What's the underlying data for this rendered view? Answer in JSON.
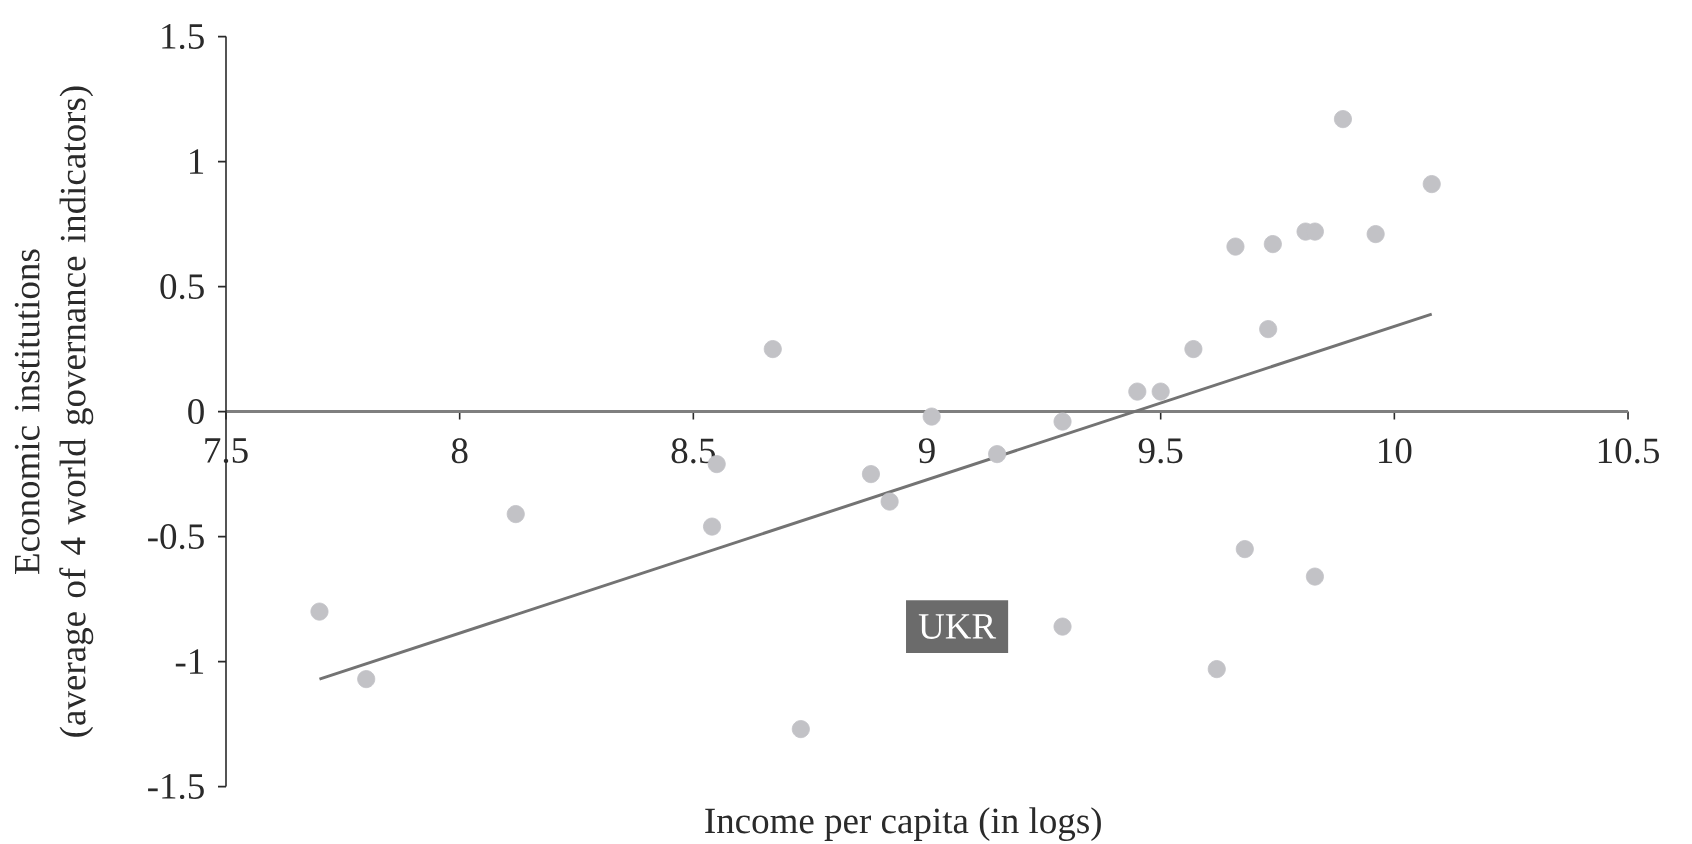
{
  "chart_data": {
    "type": "scatter",
    "xlabel": "Income per capita (in logs)",
    "ylabel": "Economic institutions\n(average of 4 world governance indicators)",
    "xlim": [
      7.5,
      10.5
    ],
    "xticks": [
      7.5,
      8,
      8.5,
      9,
      9.5,
      10,
      10.5
    ],
    "ylim": [
      -1.5,
      1.5
    ],
    "yticks": [
      -1.5,
      -1,
      -0.5,
      0,
      0.5,
      1,
      1.5
    ],
    "series": [
      {
        "color": "#c2c2c6",
        "marker": "circle",
        "x": [
          7.7,
          7.8,
          8.12,
          8.54,
          8.55,
          8.67,
          8.73,
          8.88,
          8.92,
          9.01,
          9.15,
          9.29,
          9.29,
          9.45,
          9.5,
          9.57,
          9.62,
          9.66,
          9.68,
          9.73,
          9.74,
          9.81,
          9.83,
          9.83,
          9.89,
          9.96,
          10.08
        ],
        "values": [
          -0.8,
          -1.07,
          -0.41,
          -0.46,
          -0.21,
          0.25,
          -1.27,
          -0.25,
          -0.36,
          -0.02,
          -0.17,
          -0.04,
          -0.86,
          0.08,
          0.08,
          0.25,
          -1.03,
          0.66,
          -0.55,
          0.33,
          0.67,
          0.72,
          0.72,
          -0.66,
          1.17,
          0.71,
          0.91
        ]
      },
      {
        "type": "line",
        "color": "#737373",
        "x": [
          7.7,
          10.08
        ],
        "values": [
          -1.07,
          0.39
        ]
      }
    ],
    "annotations": [
      {
        "text": "UKR",
        "x": 9.29,
        "y": -0.86
      }
    ]
  }
}
